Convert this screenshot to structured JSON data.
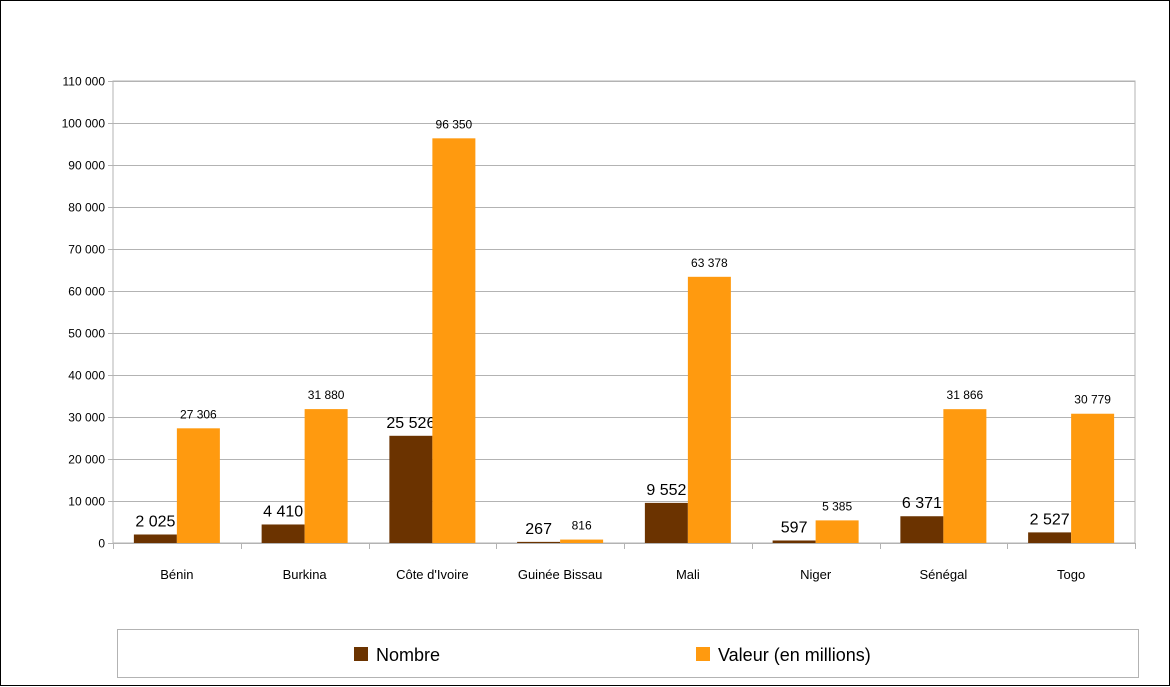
{
  "chart_data": {
    "type": "bar",
    "categories": [
      "Bénin",
      "Burkina",
      "Côte d'Ivoire",
      "Guinée Bissau",
      "Mali",
      "Niger",
      "Sénégal",
      "Togo"
    ],
    "series": [
      {
        "name": "Nombre",
        "color": "#6b3300",
        "values": [
          2025,
          4410,
          25526,
          267,
          9552,
          597,
          6371,
          2527
        ],
        "labels": [
          "2 025",
          "4 410",
          "25 526",
          "267",
          "9 552",
          "597",
          "6 371",
          "2 527"
        ]
      },
      {
        "name": "Valeur (en millions)",
        "color": "#ff9a0f",
        "values": [
          27306,
          31880,
          96350,
          816,
          63378,
          5385,
          31866,
          30779
        ],
        "labels": [
          "27 306",
          "31 880",
          "96 350",
          "816",
          "63 378",
          "5 385",
          "31 866",
          "30 779"
        ]
      }
    ],
    "ylim": [
      0,
      110000
    ],
    "yticks": [
      0,
      10000,
      20000,
      30000,
      40000,
      50000,
      60000,
      70000,
      80000,
      90000,
      100000,
      110000
    ],
    "ytick_labels": [
      "0",
      "10 000",
      "20 000",
      "30 000",
      "40 000",
      "50 000",
      "60 000",
      "70 000",
      "80 000",
      "90 000",
      "100 000",
      "110 000"
    ],
    "grid": true,
    "legend_position": "bottom"
  }
}
